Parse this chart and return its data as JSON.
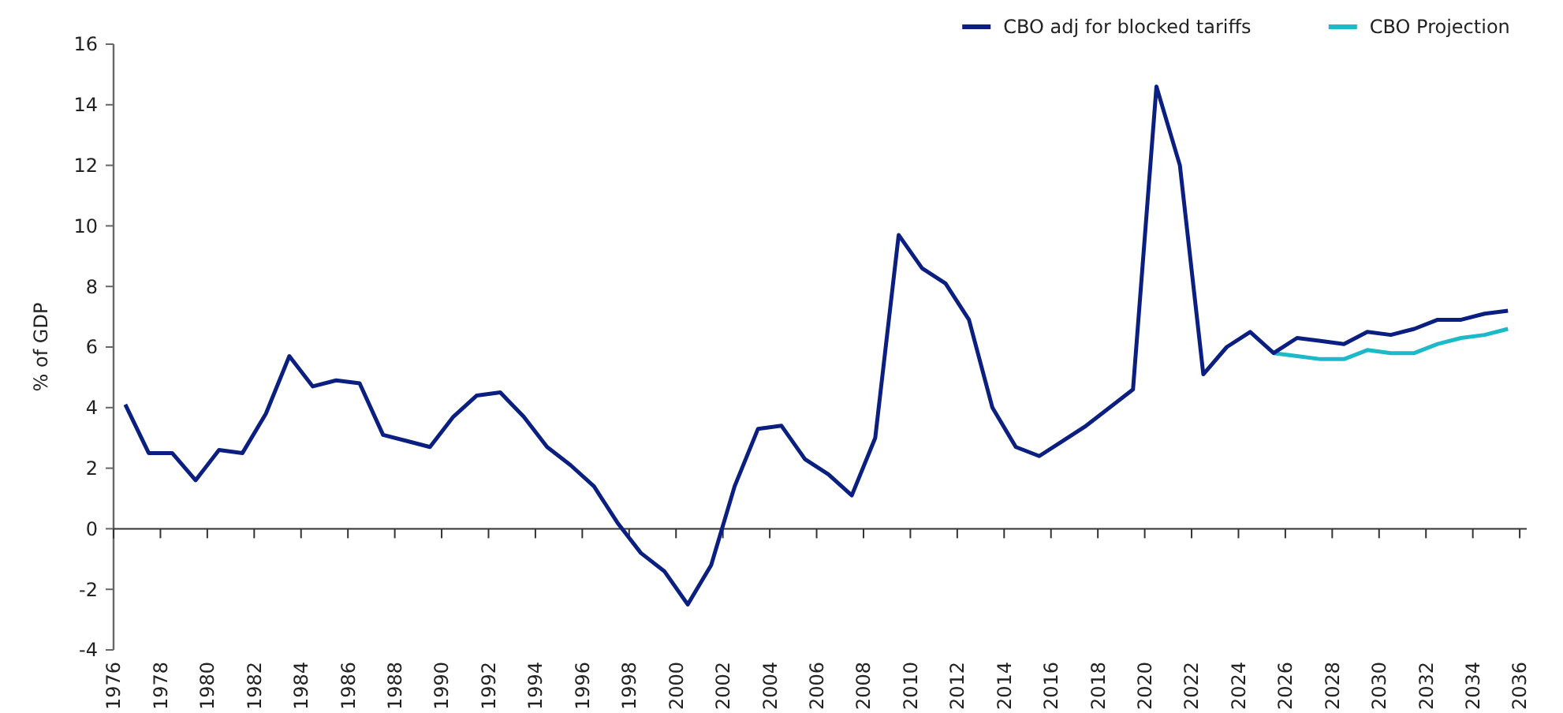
{
  "chart_data": {
    "type": "line",
    "ylabel": "% of GDP",
    "xlim": [
      1976,
      2036.3
    ],
    "xticks": [
      1976,
      1978,
      1980,
      1982,
      1984,
      1986,
      1988,
      1990,
      1992,
      1994,
      1996,
      1998,
      2000,
      2002,
      2004,
      2006,
      2008,
      2010,
      2012,
      2014,
      2016,
      2018,
      2020,
      2022,
      2024,
      2026,
      2028,
      2030,
      2032,
      2034,
      2036
    ],
    "ylim": [
      -4,
      16
    ],
    "yticks": [
      -4,
      -2,
      0,
      2,
      4,
      6,
      8,
      10,
      12,
      14,
      16
    ],
    "legend": "top right",
    "line_style": "solid",
    "marker": "none",
    "x": [
      1976.5,
      1977.5,
      1978.5,
      1979.5,
      1980.5,
      1981.5,
      1982.5,
      1983.5,
      1984.5,
      1985.5,
      1986.5,
      1987.5,
      1988.5,
      1989.5,
      1990.5,
      1991.5,
      1992.5,
      1993.5,
      1994.5,
      1995.5,
      1996.5,
      1997.5,
      1998.5,
      1999.5,
      2000.5,
      2001.5,
      2002.5,
      2003.5,
      2004.5,
      2005.5,
      2006.5,
      2007.5,
      2008.5,
      2009.5,
      2010.5,
      2011.5,
      2012.5,
      2013.5,
      2014.5,
      2015.5,
      2016.5,
      2017.5,
      2018.5,
      2019.5,
      2020.5,
      2021.5,
      2022.5,
      2023.5,
      2024.5,
      2025.5,
      2026.5,
      2027.5,
      2028.5,
      2029.5,
      2030.5,
      2031.5,
      2032.5,
      2033.5,
      2034.5,
      2035.5
    ],
    "series": [
      {
        "name": "CBO Projection",
        "color": "#1cb9c8",
        "x": [
          2025.5,
          2026.5,
          2027.5,
          2028.5,
          2029.5,
          2030.5,
          2031.5,
          2032.5,
          2033.5,
          2034.5,
          2035.5
        ],
        "values": [
          5.8,
          5.7,
          5.6,
          5.6,
          5.9,
          5.8,
          5.8,
          6.1,
          6.3,
          6.4,
          6.6
        ]
      },
      {
        "name": "CBO adj for blocked tariffs",
        "color": "#0b1f80",
        "values": [
          4.1,
          2.5,
          2.5,
          1.6,
          2.6,
          2.5,
          3.8,
          5.7,
          4.7,
          4.9,
          4.8,
          3.1,
          2.9,
          2.7,
          3.7,
          4.4,
          4.5,
          3.7,
          2.7,
          2.1,
          1.4,
          0.2,
          -0.8,
          -1.4,
          -2.5,
          -1.2,
          1.4,
          3.3,
          3.4,
          2.3,
          1.8,
          1.1,
          3.0,
          9.7,
          8.6,
          8.1,
          6.9,
          4.0,
          2.7,
          2.4,
          2.9,
          3.4,
          4.0,
          4.6,
          14.6,
          12.0,
          5.1,
          6.0,
          6.5,
          5.8,
          6.3,
          6.2,
          6.1,
          6.5,
          6.4,
          6.6,
          6.9,
          6.9,
          7.1,
          7.2
        ]
      }
    ]
  }
}
